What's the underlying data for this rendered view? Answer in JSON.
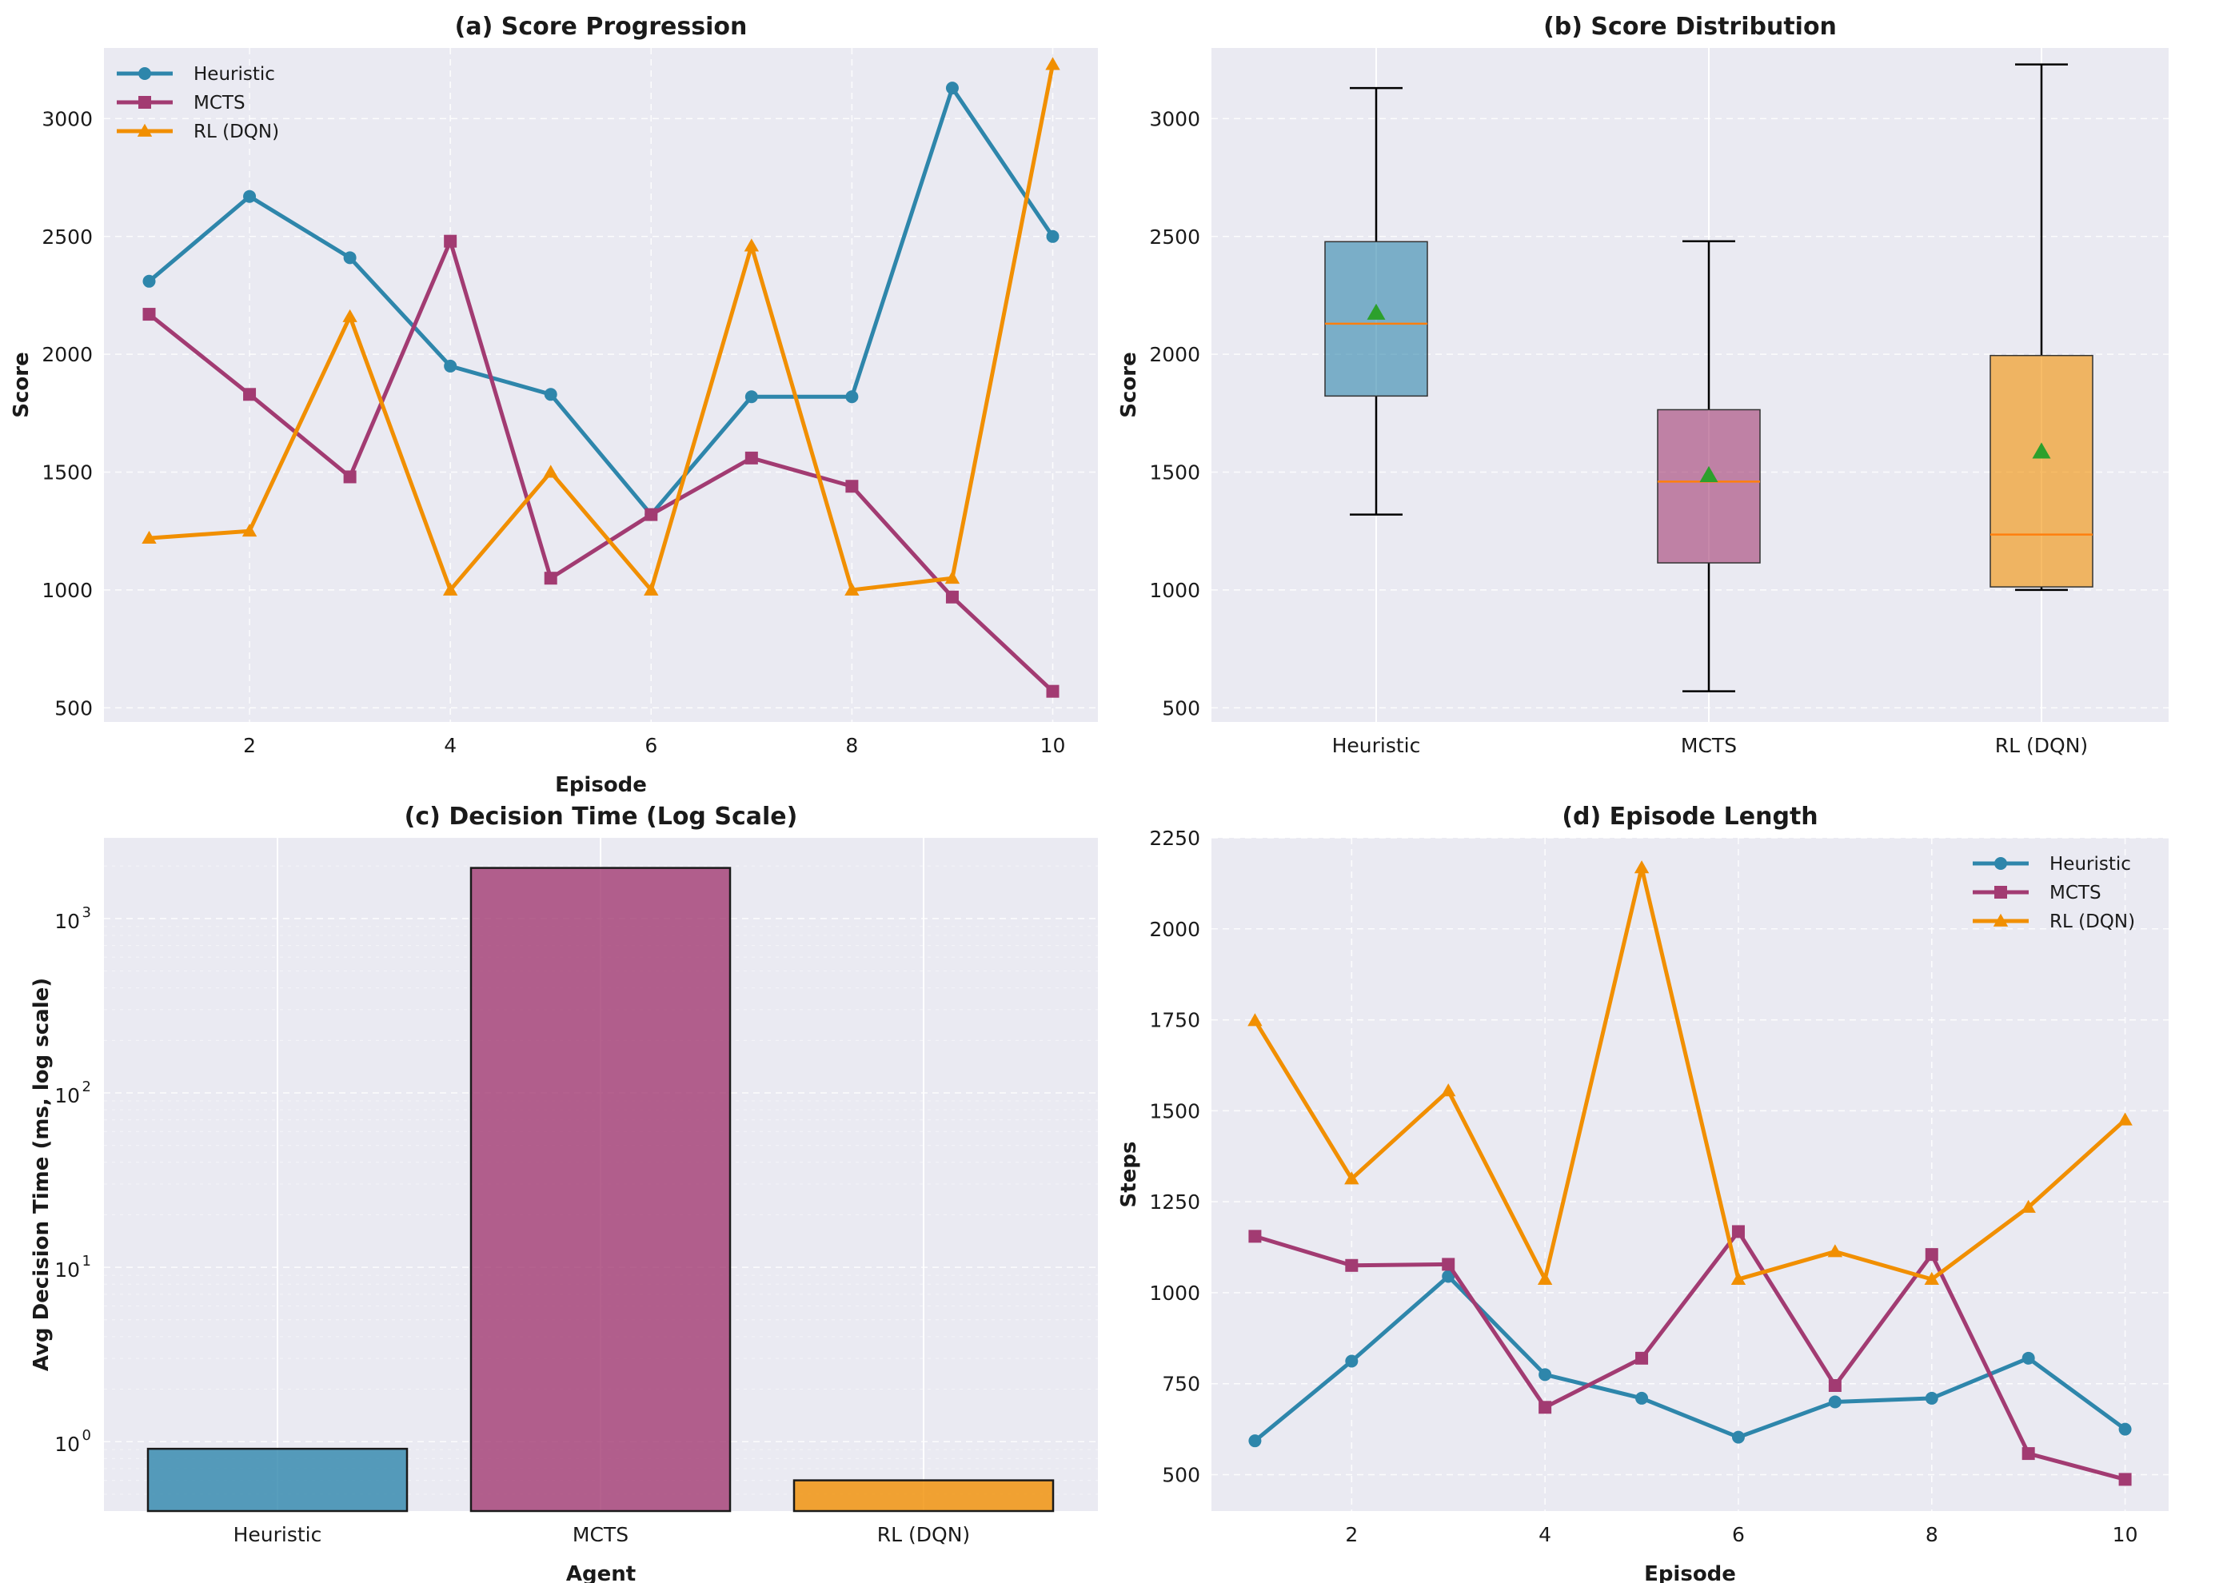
{
  "colors": {
    "heuristic": "#2e86ab",
    "mcts": "#a23b72",
    "rl": "#f18f01",
    "mean_marker": "#2ca02c",
    "median": "#ff7f0e",
    "panel_bg": "#eaeaf2"
  },
  "chart_data": [
    {
      "id": "a",
      "type": "line",
      "title": "(a) Score Progression",
      "xlabel": "Episode",
      "ylabel": "Score",
      "x": [
        1,
        2,
        3,
        4,
        5,
        6,
        7,
        8,
        9,
        10
      ],
      "xlim": [
        0.55,
        10.45
      ],
      "ylim": [
        440,
        3300
      ],
      "xticks": [
        2,
        4,
        6,
        8,
        10
      ],
      "yticks": [
        500,
        1000,
        1500,
        2000,
        2500,
        3000
      ],
      "legend_position": "top-left",
      "grid": true,
      "series": [
        {
          "name": "Heuristic",
          "key": "heuristic",
          "marker": "circle",
          "values": [
            2310,
            2670,
            2410,
            1950,
            1830,
            1320,
            1820,
            1820,
            3130,
            2500
          ]
        },
        {
          "name": "MCTS",
          "key": "mcts",
          "marker": "square",
          "values": [
            2170,
            1830,
            1480,
            2480,
            1050,
            1320,
            1560,
            1440,
            970,
            570
          ]
        },
        {
          "name": "RL (DQN)",
          "key": "rl",
          "marker": "triangle",
          "values": [
            1220,
            1250,
            2160,
            1000,
            1500,
            1000,
            2460,
            1000,
            1050,
            3230
          ]
        }
      ]
    },
    {
      "id": "b",
      "type": "box",
      "title": "(b) Score Distribution",
      "xlabel": "",
      "ylabel": "Score",
      "categories": [
        "Heuristic",
        "MCTS",
        "RL (DQN)"
      ],
      "ylim": [
        440,
        3300
      ],
      "yticks": [
        500,
        1000,
        1500,
        2000,
        2500,
        3000
      ],
      "grid": true,
      "boxes": [
        {
          "key": "heuristic",
          "min": 1320,
          "q1": 1823,
          "median": 2130,
          "q3": 2478,
          "max": 3130,
          "mean": 2176
        },
        {
          "key": "mcts",
          "min": 570,
          "q1": 1115,
          "median": 1460,
          "q3": 1765,
          "max": 2480,
          "mean": 1487
        },
        {
          "key": "rl",
          "min": 1000,
          "q1": 1013,
          "median": 1235,
          "q3": 1995,
          "max": 3230,
          "mean": 1587
        }
      ]
    },
    {
      "id": "c",
      "type": "bar",
      "title": "(c) Decision Time (Log Scale)",
      "xlabel": "Agent",
      "ylabel": "Avg Decision Time (ms, log scale)",
      "log_scale": true,
      "categories": [
        "Heuristic",
        "MCTS",
        "RL (DQN)"
      ],
      "keys": [
        "heuristic",
        "mcts",
        "rl"
      ],
      "values": [
        0.91,
        1950,
        0.6
      ],
      "ylim": [
        0.4,
        2900
      ],
      "yticks": [
        1,
        10,
        100,
        1000
      ],
      "ytick_labels": [
        "10",
        "10",
        "10",
        "10"
      ],
      "ytick_exponents": [
        "0",
        "1",
        "2",
        "3"
      ],
      "grid": true
    },
    {
      "id": "d",
      "type": "line",
      "title": "(d) Episode Length",
      "xlabel": "Episode",
      "ylabel": "Steps",
      "x": [
        1,
        2,
        3,
        4,
        5,
        6,
        7,
        8,
        9,
        10
      ],
      "xlim": [
        0.55,
        10.45
      ],
      "ylim": [
        400,
        2250
      ],
      "xticks": [
        2,
        4,
        6,
        8,
        10
      ],
      "yticks": [
        500,
        750,
        1000,
        1250,
        1500,
        1750,
        2000,
        2250
      ],
      "legend_position": "top-right",
      "grid": true,
      "series": [
        {
          "name": "Heuristic",
          "key": "heuristic",
          "marker": "circle",
          "values": [
            593,
            812,
            1045,
            775,
            710,
            603,
            700,
            710,
            820,
            625
          ]
        },
        {
          "name": "MCTS",
          "key": "mcts",
          "marker": "square",
          "values": [
            1155,
            1075,
            1078,
            685,
            820,
            1168,
            745,
            1105,
            558,
            487
          ]
        },
        {
          "name": "RL (DQN)",
          "key": "rl",
          "marker": "triangle",
          "values": [
            1748,
            1313,
            1555,
            1037,
            2168,
            1037,
            1113,
            1037,
            1235,
            1475
          ]
        }
      ]
    }
  ]
}
